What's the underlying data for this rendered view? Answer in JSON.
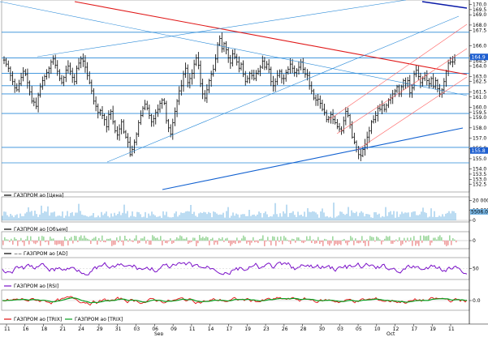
{
  "chart_data": {
    "type": "line",
    "main": {
      "series_name": "ГАЗПРОМ ао [Цена]",
      "y_ticks": [
        "170.0",
        "169.5",
        "169.0",
        "168.0",
        "167.5",
        "166.0",
        "165.0",
        "164.5",
        "164.0",
        "163.0",
        "162.5",
        "161.5",
        "161.0",
        "160.0",
        "159.5",
        "159.0",
        "158.0",
        "157.0",
        "156.0",
        "155.0",
        "154.0",
        "153.5",
        "153.0",
        "152.5"
      ],
      "ylim": [
        152.0,
        170.2
      ],
      "price_markers": [
        {
          "label": "164.9",
          "color": "#1e5fd0"
        },
        {
          "label": "155.8",
          "color": "#1e5fd0"
        }
      ],
      "closes": [
        164.6,
        164.2,
        163.8,
        163.1,
        162.5,
        161.9,
        161.7,
        162.3,
        162.9,
        163.5,
        163.2,
        162.4,
        161.5,
        160.6,
        160.5,
        160.1,
        161.2,
        162.0,
        162.6,
        163.0,
        163.4,
        163.8,
        164.4,
        164.7,
        164.1,
        163.5,
        162.8,
        162.4,
        162.9,
        163.6,
        164.0,
        163.5,
        162.9,
        162.5,
        163.8,
        164.3,
        164.7,
        164.5,
        163.9,
        163.1,
        162.4,
        161.6,
        160.6,
        160.1,
        159.5,
        159.7,
        159.2,
        158.8,
        158.1,
        159.3,
        159.6,
        158.6,
        157.7,
        157.3,
        157.9,
        158.6,
        157.6,
        157.1,
        156.6,
        155.4,
        155.9,
        156.6,
        157.4,
        158.5,
        159.2,
        159.9,
        160.3,
        159.9,
        159.2,
        158.6,
        158.9,
        159.5,
        159.8,
        160.4,
        160.7,
        160.4,
        158.7,
        158.0,
        157.4,
        158.5,
        159.6,
        160.6,
        161.6,
        162.1,
        163.2,
        163.8,
        162.4,
        162.8,
        163.3,
        164.2,
        164.8,
        164.1,
        162.3,
        161.3,
        160.9,
        161.7,
        162.6,
        163.2,
        163.7,
        164.7,
        166.1,
        166.7,
        165.7,
        166.2,
        165.6,
        164.8,
        164.3,
        165.2,
        164.9,
        164.4,
        163.8,
        164.2,
        163.2,
        162.5,
        162.8,
        163.3,
        163.1,
        162.8,
        163.3,
        163.5,
        163.9,
        164.5,
        163.9,
        164.2,
        163.7,
        162.5,
        162.1,
        162.5,
        163.1,
        163.5,
        162.8,
        162.8,
        163.4,
        163.7,
        164.2,
        163.8,
        163.4,
        163.6,
        163.9,
        164.4,
        163.7,
        163.2,
        163.1,
        162.1,
        161.6,
        160.9,
        160.7,
        160.8,
        160.4,
        159.8,
        159.5,
        158.8,
        159.0,
        159.3,
        158.8,
        158.5,
        158.1,
        157.9,
        157.7,
        158.7,
        159.6,
        159.2,
        158.3,
        157.1,
        156.6,
        155.9,
        155.4,
        155.3,
        155.9,
        156.4,
        157.1,
        157.7,
        158.6,
        158.8,
        159.2,
        159.9,
        159.8,
        160.2,
        159.8,
        160.2,
        160.7,
        160.9,
        161.3,
        161.6,
        162.0,
        161.3,
        162.0,
        162.6,
        162.3,
        162.6,
        161.4,
        161.9,
        163.2,
        163.6,
        163.0,
        162.4,
        162.8,
        163.1,
        162.6,
        162.3,
        162.8,
        162.0,
        162.6,
        161.8,
        161.3,
        161.7,
        162.5,
        163.5,
        164.3,
        164.4,
        164.4,
        164.6
      ]
    },
    "volume": {
      "series_name": "ГАЗПРОМ ао [Объем]",
      "y_ticks": [
        "20 000.0",
        "10 000.0",
        "0"
      ],
      "last_label": "5506.0"
    },
    "delta": {
      "series_name": "ГАЗПРОМ ао [Объем]",
      "y_ticks": [
        "0"
      ]
    },
    "ao": {
      "series_name": "ГАЗПРОМ ао [AD]",
      "y_ticks": [
        "50"
      ]
    },
    "rsi": {
      "series_name": "ГАЗПРОМ ао [RSI]",
      "y_ticks": [
        "0.0"
      ]
    },
    "trix": {
      "series_names": [
        "ГАЗПРОМ ао [TRIX]",
        "ГАЗПРОМ ао [TRIX]"
      ]
    },
    "x_ticks": [
      "11",
      "16",
      "18",
      "21",
      "24",
      "29",
      "31",
      "03",
      "06",
      "09",
      "11",
      "14",
      "17",
      "19",
      "23",
      "26",
      "28",
      "30",
      "03",
      "05",
      "10",
      "12",
      "17",
      "19",
      "11"
    ],
    "x_months": [
      "Sep",
      "Oct"
    ]
  },
  "colors": {
    "grid_blue": "#2a8ad8",
    "trend_red": "#e01818",
    "trend_blue": "#1060d0",
    "navy": "#0a1aa8",
    "volume": "#7ab8e6",
    "rsi": "#7a10c8",
    "trix_red": "#e01010",
    "trix_green": "#08a020"
  }
}
